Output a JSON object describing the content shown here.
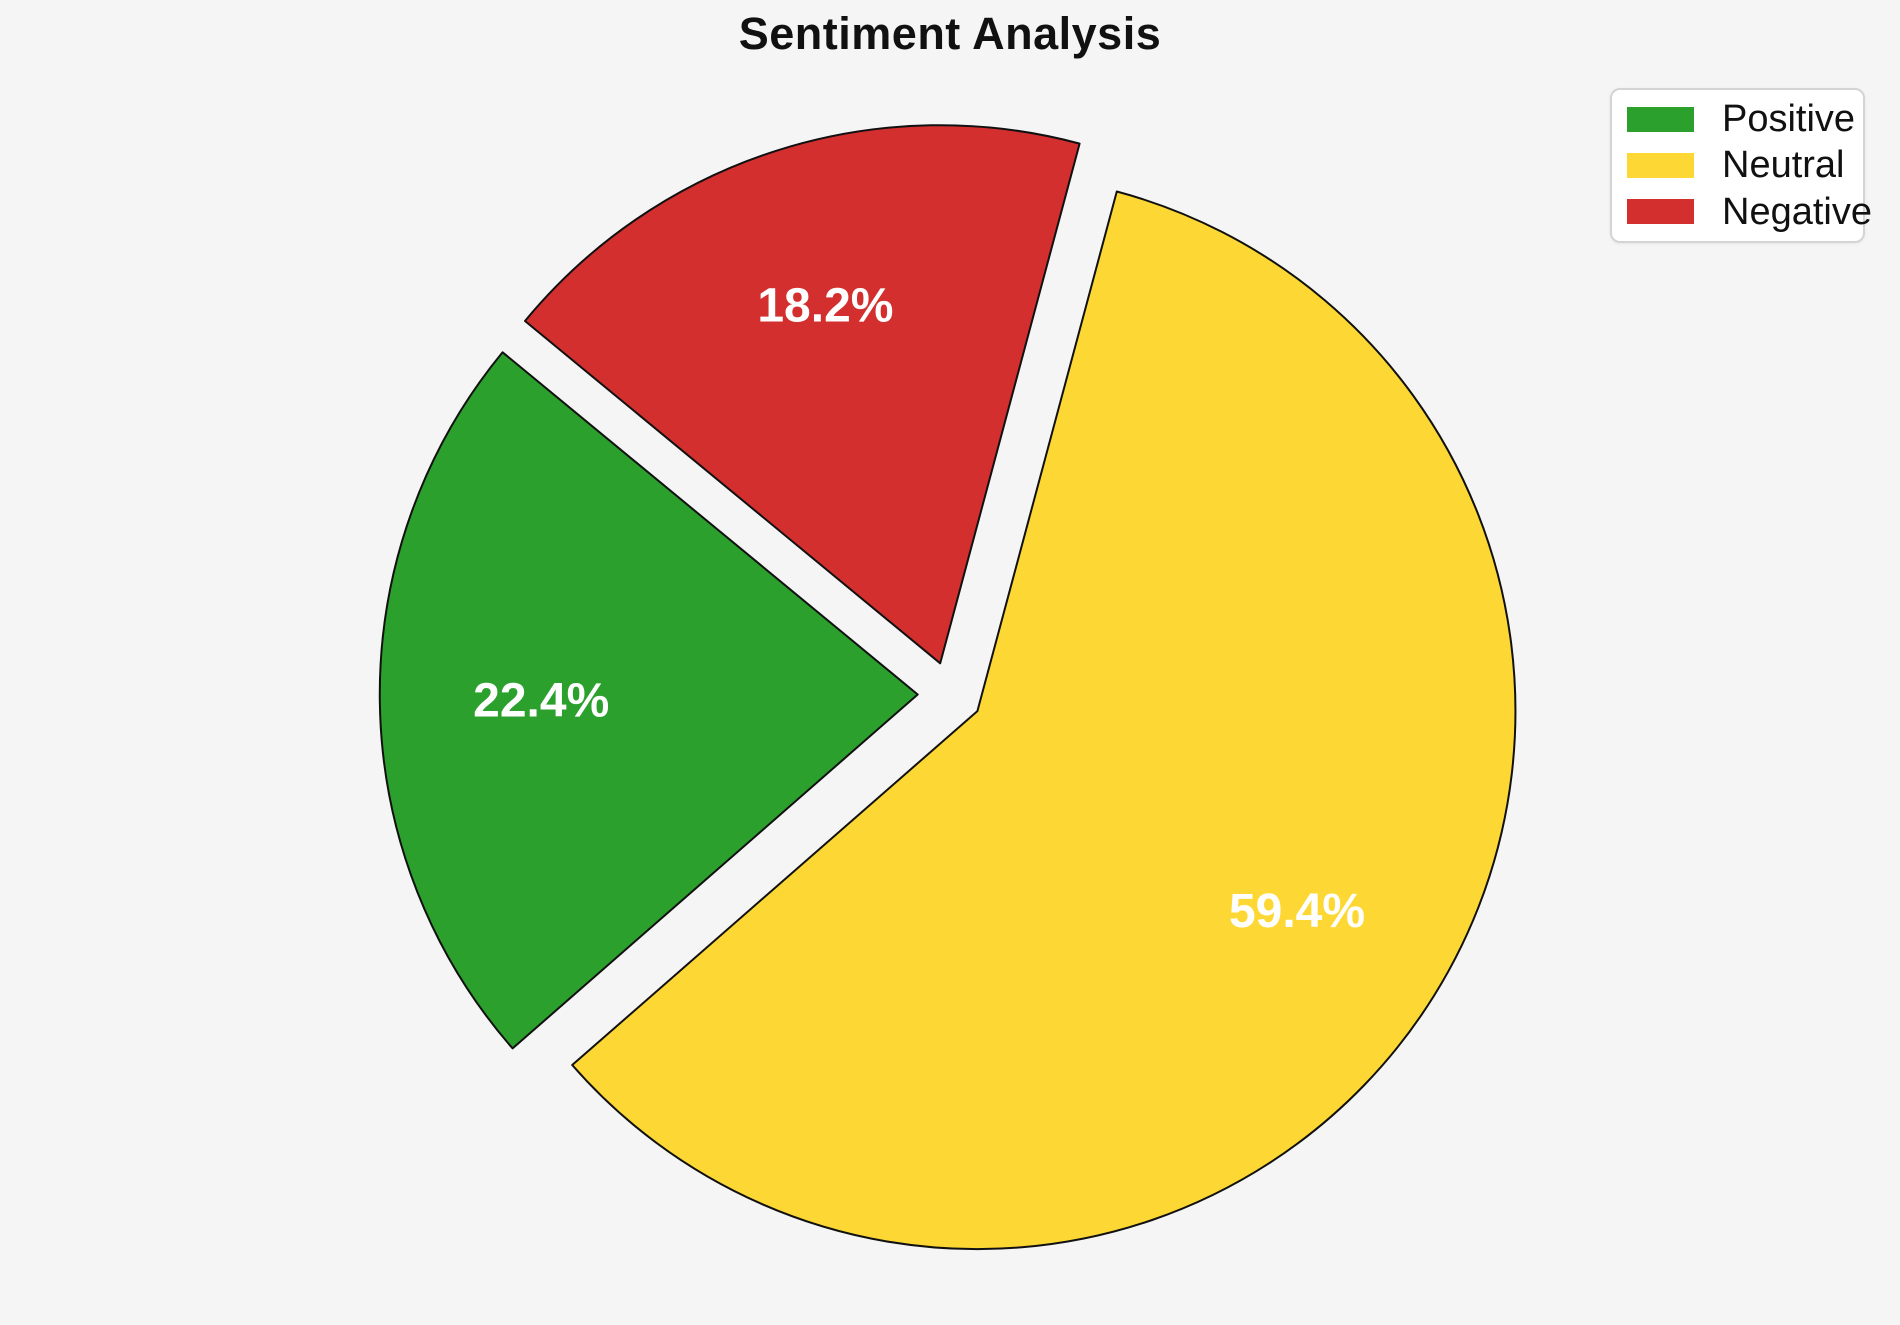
{
  "title": "Sentiment Analysis",
  "background_color": "#f5f5f6",
  "chart_data": {
    "type": "pie",
    "title": "Sentiment Analysis",
    "labels": [
      "Positive",
      "Neutral",
      "Negative"
    ],
    "values": [
      22.4,
      59.4,
      18.2
    ],
    "pct_labels": [
      "22.4%",
      "59.4%",
      "18.2%"
    ],
    "colors": [
      "#2ca02c",
      "#fdd835",
      "#d32f2f"
    ],
    "edge_color": "#111111",
    "pct_label_color": "#ffffff",
    "startangle": 140.5,
    "counterclockwise": true,
    "explode": [
      0.06,
      0.06,
      0.06
    ],
    "pctdistance": 0.7,
    "legend_position": "upper right",
    "grid": false
  },
  "legend": {
    "items": [
      {
        "label": "Positive",
        "color": "#2ca02c"
      },
      {
        "label": "Neutral",
        "color": "#fdd835"
      },
      {
        "label": "Negative",
        "color": "#d32f2f"
      }
    ]
  }
}
